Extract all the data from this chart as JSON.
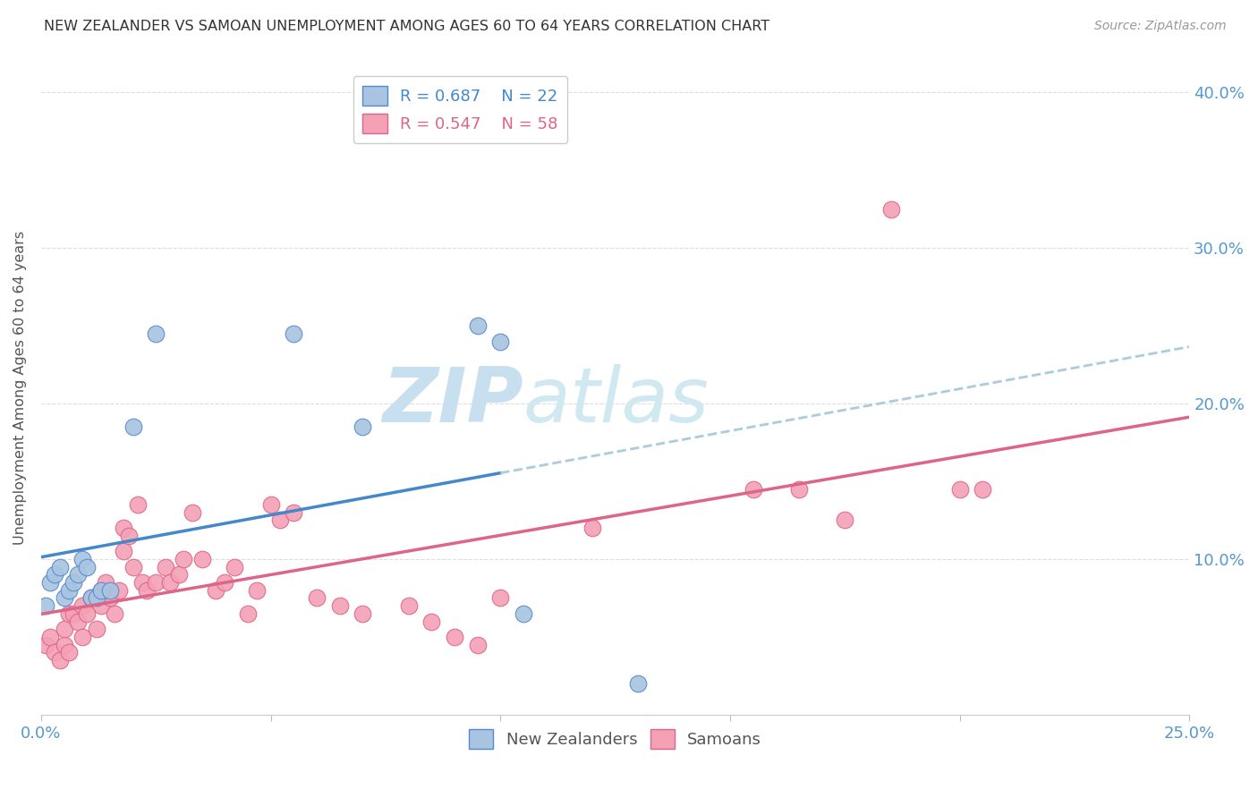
{
  "title": "NEW ZEALANDER VS SAMOAN UNEMPLOYMENT AMONG AGES 60 TO 64 YEARS CORRELATION CHART",
  "source": "Source: ZipAtlas.com",
  "ylabel": "Unemployment Among Ages 60 to 64 years",
  "xlim": [
    0.0,
    0.25
  ],
  "ylim": [
    0.0,
    0.42
  ],
  "y_ticks": [
    0.0,
    0.1,
    0.2,
    0.3,
    0.4
  ],
  "y_tick_labels": [
    "",
    "10.0%",
    "20.0%",
    "30.0%",
    "40.0%"
  ],
  "nz_R": 0.687,
  "nz_N": 22,
  "samoan_R": 0.547,
  "samoan_N": 58,
  "nz_color": "#a8c4e0",
  "samoan_color": "#f4a0b5",
  "nz_edge_color": "#5588cc",
  "samoan_edge_color": "#dd6688",
  "trend_nz_color": "#4488cc",
  "trend_samoan_color": "#dd6688",
  "trend_ext_color": "#aaccdd",
  "title_color": "#333333",
  "axis_label_color": "#555555",
  "tick_color": "#5599cc",
  "grid_color": "#dddddd",
  "watermark_color": "#c8dff0",
  "nz_x": [
    0.001,
    0.002,
    0.003,
    0.004,
    0.005,
    0.006,
    0.007,
    0.008,
    0.009,
    0.01,
    0.011,
    0.012,
    0.013,
    0.02,
    0.025,
    0.055,
    0.07,
    0.095,
    0.1,
    0.105,
    0.13,
    0.015
  ],
  "nz_y": [
    0.07,
    0.085,
    0.09,
    0.095,
    0.075,
    0.08,
    0.085,
    0.09,
    0.1,
    0.095,
    0.075,
    0.075,
    0.08,
    0.185,
    0.245,
    0.245,
    0.185,
    0.25,
    0.24,
    0.065,
    0.02,
    0.08
  ],
  "samoan_x": [
    0.001,
    0.002,
    0.003,
    0.004,
    0.005,
    0.005,
    0.006,
    0.006,
    0.007,
    0.008,
    0.009,
    0.009,
    0.01,
    0.011,
    0.012,
    0.013,
    0.013,
    0.014,
    0.015,
    0.016,
    0.017,
    0.018,
    0.018,
    0.019,
    0.02,
    0.021,
    0.022,
    0.023,
    0.025,
    0.027,
    0.028,
    0.03,
    0.031,
    0.033,
    0.035,
    0.038,
    0.04,
    0.042,
    0.045,
    0.047,
    0.05,
    0.052,
    0.055,
    0.06,
    0.065,
    0.07,
    0.08,
    0.085,
    0.09,
    0.095,
    0.1,
    0.12,
    0.155,
    0.165,
    0.175,
    0.185,
    0.2,
    0.205
  ],
  "samoan_y": [
    0.045,
    0.05,
    0.04,
    0.035,
    0.045,
    0.055,
    0.04,
    0.065,
    0.065,
    0.06,
    0.05,
    0.07,
    0.065,
    0.075,
    0.055,
    0.07,
    0.08,
    0.085,
    0.075,
    0.065,
    0.08,
    0.105,
    0.12,
    0.115,
    0.095,
    0.135,
    0.085,
    0.08,
    0.085,
    0.095,
    0.085,
    0.09,
    0.1,
    0.13,
    0.1,
    0.08,
    0.085,
    0.095,
    0.065,
    0.08,
    0.135,
    0.125,
    0.13,
    0.075,
    0.07,
    0.065,
    0.07,
    0.06,
    0.05,
    0.045,
    0.075,
    0.12,
    0.145,
    0.145,
    0.125,
    0.325,
    0.145,
    0.145
  ]
}
